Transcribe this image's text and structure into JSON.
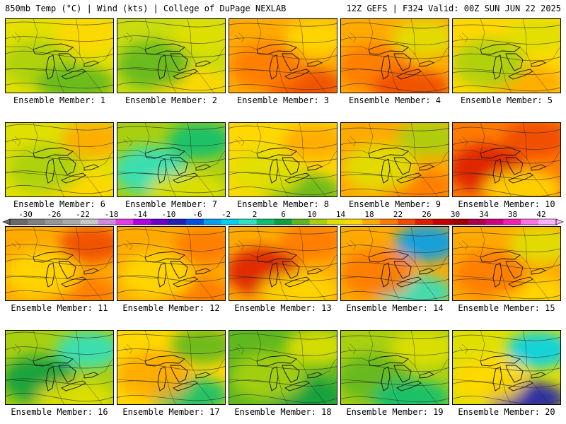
{
  "header": {
    "left": "850mb Temp (°C) | Wind (kts) | College of DuPage NEXLAB",
    "right": "12Z GEFS | F324 Valid: 00Z SUN JUN 22 2025"
  },
  "colorbar": {
    "labels": [
      "-30",
      "-26",
      "-22",
      "-18",
      "-14",
      "-10",
      "-6",
      "-2",
      "2",
      "6",
      "10",
      "14",
      "18",
      "22",
      "26",
      "30",
      "34",
      "38",
      "42"
    ],
    "colors": [
      "#6a6a6a",
      "#808080",
      "#969696",
      "#aaaaaa",
      "#c8c8c8",
      "#cf8ae0",
      "#e040e0",
      "#b000e0",
      "#6a00c8",
      "#2020b4",
      "#0050e0",
      "#00a0f0",
      "#00d2f0",
      "#30e0c0",
      "#10c070",
      "#10a040",
      "#60b820",
      "#a8d010",
      "#e0e000",
      "#ffd800",
      "#ffaa00",
      "#ff7a00",
      "#f04a00",
      "#dc1e00",
      "#c80000",
      "#a00000",
      "#b0004a",
      "#d00080",
      "#f020b0",
      "#ff70e0",
      "#ffb0ff"
    ]
  },
  "ensemble_label_prefix": "Ensemble Member: ",
  "members": [
    {
      "label": "Ensemble Member: 1",
      "base": "#e4e000",
      "blobs": [
        {
          "c": "#a8d010"
        },
        {
          "c": "#ffd800"
        },
        {
          "c": "#60b820"
        }
      ]
    },
    {
      "label": "Ensemble Member: 2",
      "base": "#c8dc10",
      "blobs": [
        {
          "c": "#e0e000"
        },
        {
          "c": "#ffd800"
        },
        {
          "c": "#60b820"
        }
      ]
    },
    {
      "label": "Ensemble Member: 3",
      "base": "#ffaa00",
      "blobs": [
        {
          "c": "#f04a00"
        },
        {
          "c": "#ff7a00"
        },
        {
          "c": "#ffd800"
        }
      ]
    },
    {
      "label": "Ensemble Member: 4",
      "base": "#ffaa00",
      "blobs": [
        {
          "c": "#ff7a00"
        },
        {
          "c": "#e0e000"
        },
        {
          "c": "#f04a00"
        }
      ]
    },
    {
      "label": "Ensemble Member: 5",
      "base": "#ffd800",
      "blobs": [
        {
          "c": "#e0e000"
        },
        {
          "c": "#ffaa00"
        },
        {
          "c": "#a8d010"
        }
      ]
    },
    {
      "label": "Ensemble Member: 6",
      "base": "#e0e000",
      "blobs": [
        {
          "c": "#ffd800"
        },
        {
          "c": "#a8d010"
        },
        {
          "c": "#ffaa00"
        }
      ]
    },
    {
      "label": "Ensemble Member: 7",
      "base": "#a8d010",
      "blobs": [
        {
          "c": "#30e0c0"
        },
        {
          "c": "#10c070"
        },
        {
          "c": "#e0e000"
        }
      ]
    },
    {
      "label": "Ensemble Member: 8",
      "base": "#ffd800",
      "blobs": [
        {
          "c": "#ffaa00"
        },
        {
          "c": "#60b820"
        },
        {
          "c": "#e0e000"
        }
      ]
    },
    {
      "label": "Ensemble Member: 9",
      "base": "#ffaa00",
      "blobs": [
        {
          "c": "#ff7a00"
        },
        {
          "c": "#e0e000"
        },
        {
          "c": "#a8d010"
        }
      ]
    },
    {
      "label": "Ensemble Member: 10",
      "base": "#ff7a00",
      "blobs": [
        {
          "c": "#dc1e00"
        },
        {
          "c": "#f04a00"
        },
        {
          "c": "#ffd800"
        }
      ]
    },
    {
      "label": "Ensemble Member: 11",
      "base": "#ffaa00",
      "blobs": [
        {
          "c": "#f04a00"
        },
        {
          "c": "#ff7a00"
        },
        {
          "c": "#ffd800"
        }
      ]
    },
    {
      "label": "Ensemble Member: 12",
      "base": "#ffaa00",
      "blobs": [
        {
          "c": "#ff7a00"
        },
        {
          "c": "#ffd800"
        },
        {
          "c": "#ff7a00"
        }
      ]
    },
    {
      "label": "Ensemble Member: 13",
      "base": "#ffaa00",
      "blobs": [
        {
          "c": "#dc1e00"
        },
        {
          "c": "#ff7a00"
        },
        {
          "c": "#ffd800"
        }
      ]
    },
    {
      "label": "Ensemble Member: 14",
      "base": "#ffaa00",
      "blobs": [
        {
          "c": "#00a0f0"
        },
        {
          "c": "#30e0c0"
        },
        {
          "c": "#ff7a00"
        }
      ]
    },
    {
      "label": "Ensemble Member: 15",
      "base": "#ffaa00",
      "blobs": [
        {
          "c": "#ffd800"
        },
        {
          "c": "#ff7a00"
        },
        {
          "c": "#e0e000"
        }
      ]
    },
    {
      "label": "Ensemble Member: 16",
      "base": "#a8d010",
      "blobs": [
        {
          "c": "#10a040"
        },
        {
          "c": "#30e0c0"
        },
        {
          "c": "#e0e000"
        }
      ]
    },
    {
      "label": "Ensemble Member: 17",
      "base": "#ffd800",
      "blobs": [
        {
          "c": "#60b820"
        },
        {
          "c": "#10c070"
        },
        {
          "c": "#ffaa00"
        }
      ]
    },
    {
      "label": "Ensemble Member: 18",
      "base": "#60b820",
      "blobs": [
        {
          "c": "#10a040"
        },
        {
          "c": "#a8d010"
        },
        {
          "c": "#e0e000"
        }
      ]
    },
    {
      "label": "Ensemble Member: 19",
      "base": "#a8d010",
      "blobs": [
        {
          "c": "#60b820"
        },
        {
          "c": "#e0e000"
        },
        {
          "c": "#10c070"
        }
      ]
    },
    {
      "label": "Ensemble Member: 20",
      "base": "#e0e000",
      "blobs": [
        {
          "c": "#00d2f0"
        },
        {
          "c": "#2020b4"
        },
        {
          "c": "#ffd800"
        }
      ]
    }
  ]
}
